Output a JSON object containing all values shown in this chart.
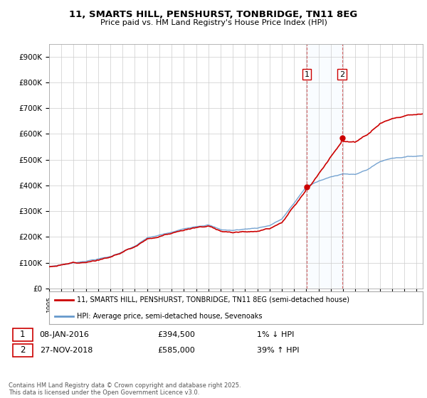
{
  "title1": "11, SMARTS HILL, PENSHURST, TONBRIDGE, TN11 8EG",
  "title2": "Price paid vs. HM Land Registry's House Price Index (HPI)",
  "ylim": [
    0,
    950000
  ],
  "yticks": [
    0,
    100000,
    200000,
    300000,
    400000,
    500000,
    600000,
    700000,
    800000,
    900000
  ],
  "ytick_labels": [
    "£0",
    "£100K",
    "£200K",
    "£300K",
    "£400K",
    "£500K",
    "£600K",
    "£700K",
    "£800K",
    "£900K"
  ],
  "legend1": "11, SMARTS HILL, PENSHURST, TONBRIDGE, TN11 8EG (semi-detached house)",
  "legend2": "HPI: Average price, semi-detached house, Sevenoaks",
  "line1_color": "#cc0000",
  "line2_color": "#6699cc",
  "sale1_yr": 2016.04,
  "sale1_price": 394500,
  "sale2_yr": 2018.92,
  "sale2_price": 585000,
  "footer": "Contains HM Land Registry data © Crown copyright and database right 2025.\nThis data is licensed under the Open Government Licence v3.0.",
  "background_color": "#ffffff",
  "grid_color": "#cccccc",
  "shade_color": "#ddeeff",
  "vline_color": "#cc4444"
}
